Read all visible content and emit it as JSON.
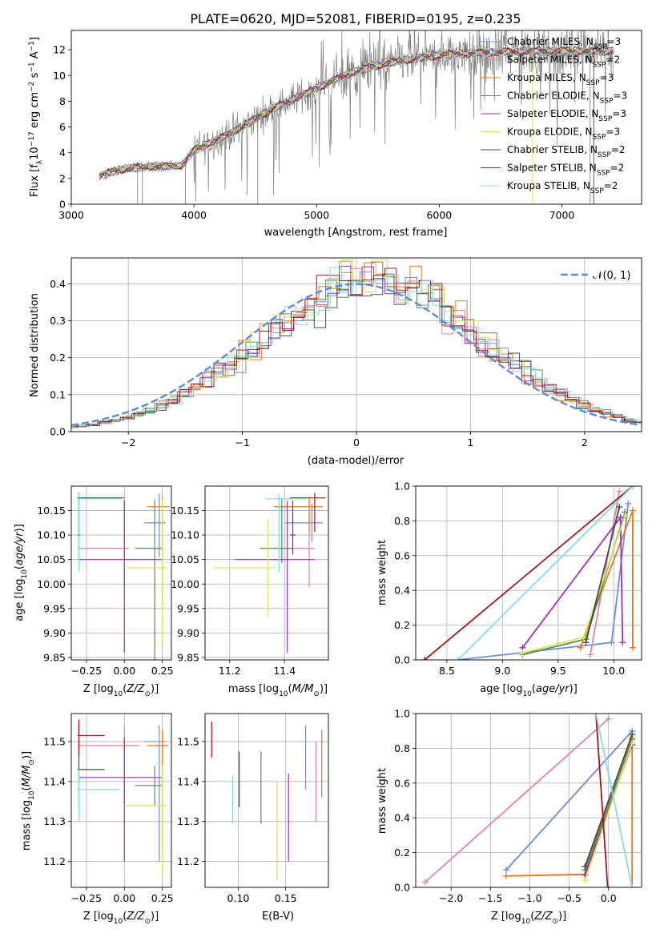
{
  "figure_title": "PLATE=0620, MJD=52081, FIBERID=0195, z=0.235",
  "colors": {
    "Chabrier MILES": "#6a8fd8",
    "Salpeter MILES": "#e67fb0",
    "Kroupa MILES": "#e8781a",
    "Chabrier ELODIE": "#5f8a50",
    "Salpeter ELODIE": "#9932b4",
    "Kroupa ELODIE": "#cfe85a",
    "Chabrier STELIB": "#4a4a4a",
    "Salpeter STELIB": "#a01818",
    "Kroupa STELIB": "#80dde2",
    "data_spectrum": "#808080",
    "gaussian": "#5b8ad6"
  },
  "chart_data": [
    {
      "id": "spectrum",
      "type": "line",
      "title": "PLATE=0620, MJD=52081, FIBERID=0195, z=0.235",
      "xlabel": "wavelength [Angstrom, rest frame]",
      "ylabel": "Flux [f$_\\lambda$10$^{-17}$ erg cm$^{-2}$ s$^{-1}$ A$^{-1}$]",
      "ylabel_parts": [
        "Flux [f",
        "λ",
        "10",
        "−17",
        " erg cm",
        "−2",
        " s",
        "−1",
        " A",
        "−1",
        "]"
      ],
      "xlim": [
        3000,
        7650
      ],
      "ylim": [
        0,
        13.5
      ],
      "xticks": [
        3000,
        4000,
        5000,
        6000,
        7000
      ],
      "yticks": [
        0,
        2,
        4,
        6,
        8,
        10,
        12
      ],
      "legend_position": "top-right",
      "series": [
        {
          "name": "Chabrier MILES",
          "n": "3"
        },
        {
          "name": "Salpeter MILES",
          "n": "2"
        },
        {
          "name": "Kroupa MILES",
          "n": "3"
        },
        {
          "name": "Chabrier ELODIE",
          "n": "3"
        },
        {
          "name": "Salpeter ELODIE",
          "n": "3"
        },
        {
          "name": "Kroupa ELODIE",
          "n": "3"
        },
        {
          "name": "Chabrier STELIB",
          "n": "2"
        },
        {
          "name": "Salpeter STELIB",
          "n": "2"
        },
        {
          "name": "Kroupa STELIB",
          "n": "2"
        }
      ],
      "n_prefix": "N",
      "n_sub": "SSP",
      "continuum": [
        [
          3230,
          2.2
        ],
        [
          3400,
          2.7
        ],
        [
          3600,
          2.9
        ],
        [
          3900,
          3.0
        ],
        [
          4000,
          4.2
        ],
        [
          4300,
          5.5
        ],
        [
          4600,
          7.2
        ],
        [
          5000,
          9.0
        ],
        [
          5300,
          10.3
        ],
        [
          5600,
          11.0
        ],
        [
          6000,
          11.6
        ],
        [
          6400,
          11.8
        ],
        [
          6800,
          11.9
        ],
        [
          7400,
          11.9
        ]
      ]
    },
    {
      "id": "residuals",
      "type": "bar",
      "xlabel": "(data-model)/error",
      "ylabel": "Normed distribution",
      "xlim": [
        -2.5,
        2.5
      ],
      "ylim": [
        0,
        0.47
      ],
      "xticks": [
        -2,
        -1,
        0,
        1,
        2
      ],
      "yticks": [
        0.0,
        0.1,
        0.2,
        0.3,
        0.4
      ],
      "legend_label": "𝒩(0, 1)",
      "legend_position": "top-right",
      "bin_width": 0.1,
      "gaussian": {
        "mean": 0,
        "sigma": 1
      }
    },
    {
      "id": "age-vs-Z",
      "type": "scatter",
      "xlabel": "Z [log$_{10}$(Z/Z$_\\odot$)]",
      "ylabel": "age  [log$_{10}$(age/yr)]",
      "xlim": [
        -0.35,
        0.31
      ],
      "ylim": [
        9.845,
        10.2
      ],
      "xticks": [
        -0.25,
        0.0,
        0.25
      ],
      "yticks": [
        9.85,
        9.9,
        9.95,
        10.0,
        10.05,
        10.1,
        10.15
      ],
      "points": [
        {
          "series": "Chabrier MILES",
          "x": 0.23,
          "y": 10.125,
          "xerr": [
            0.1,
            0.04
          ],
          "yerr": [
            0.07,
            0.06
          ]
        },
        {
          "series": "Salpeter MILES",
          "x": 0.0,
          "y": 10.073,
          "xerr": [
            0.3,
            0.03
          ],
          "yerr": [
            0.08,
            0.1
          ]
        },
        {
          "series": "Kroupa MILES",
          "x": 0.25,
          "y": 10.158,
          "xerr": [
            0.1,
            0.05
          ],
          "yerr": [
            0.2,
            0.02
          ]
        },
        {
          "series": "Chabrier ELODIE",
          "x": 0.2,
          "y": 10.073,
          "xerr": [
            0.13,
            0.05
          ],
          "yerr": [
            0.25,
            0.1
          ]
        },
        {
          "series": "Salpeter ELODIE",
          "x": 0.0,
          "y": 10.05,
          "xerr": [
            0.3,
            0.25
          ],
          "yerr": [
            0.19,
            0.12
          ]
        },
        {
          "series": "Kroupa ELODIE",
          "x": 0.25,
          "y": 10.033,
          "xerr": [
            0.25,
            0.04
          ],
          "yerr": [
            0.16,
            0.14
          ]
        },
        {
          "series": "Chabrier STELIB",
          "x": -0.3,
          "y": 10.1,
          "xerr": [
            0.01,
            0.01
          ],
          "yerr": [
            0.05,
            0.07
          ]
        },
        {
          "series": "Salpeter STELIB",
          "x": -0.3,
          "y": 10.176,
          "xerr": [
            0.01,
            0.3
          ],
          "yerr": [
            0.07,
            0.01
          ]
        },
        {
          "series": "Kroupa STELIB",
          "x": -0.3,
          "y": 10.174,
          "xerr": [
            0.01,
            0.28
          ],
          "yerr": [
            0.15,
            0.01
          ]
        }
      ]
    },
    {
      "id": "age-vs-mass",
      "type": "scatter",
      "xlabel": "mass [log$_{10}$(M/M$_\\odot$)]",
      "ylabel": "",
      "xlim": [
        11.11,
        11.56
      ],
      "ylim": [
        9.845,
        10.2
      ],
      "xticks": [
        11.2,
        11.4
      ],
      "yticks": [
        9.85,
        9.9,
        9.95,
        10.0,
        10.05,
        10.1,
        10.15
      ],
      "points": [
        {
          "series": "Chabrier MILES",
          "x": 11.5,
          "y": 10.125,
          "xerr": [
            0.1,
            0.04
          ],
          "yerr": [
            0.04,
            0.04
          ]
        },
        {
          "series": "Salpeter MILES",
          "x": 11.49,
          "y": 10.073,
          "xerr": [
            0.09,
            0.02
          ],
          "yerr": [
            0.08,
            0.1
          ]
        },
        {
          "series": "Kroupa MILES",
          "x": 11.49,
          "y": 10.158,
          "xerr": [
            0.13,
            0.05
          ],
          "yerr": [
            0.05,
            0.02
          ]
        },
        {
          "series": "Chabrier ELODIE",
          "x": 11.39,
          "y": 10.073,
          "xerr": [
            0.08,
            0.04
          ],
          "yerr": [
            0.03,
            0.1
          ]
        },
        {
          "series": "Salpeter ELODIE",
          "x": 11.41,
          "y": 10.05,
          "xerr": [
            0.19,
            0.1
          ],
          "yerr": [
            0.19,
            0.12
          ]
        },
        {
          "series": "Kroupa ELODIE",
          "x": 11.34,
          "y": 10.033,
          "xerr": [
            0.2,
            0.03
          ],
          "yerr": [
            0.1,
            0.1
          ]
        },
        {
          "series": "Chabrier STELIB",
          "x": 11.43,
          "y": 10.1,
          "xerr": [
            0.01,
            0.01
          ],
          "yerr": [
            0.04,
            0.07
          ]
        },
        {
          "series": "Salpeter STELIB",
          "x": 11.51,
          "y": 10.176,
          "xerr": [
            0.09,
            0.04
          ],
          "yerr": [
            0.07,
            0.01
          ]
        },
        {
          "series": "Kroupa STELIB",
          "x": 11.38,
          "y": 10.174,
          "xerr": [
            0.05,
            0.1
          ],
          "yerr": [
            0.15,
            0.01
          ]
        }
      ]
    },
    {
      "id": "weight-vs-age",
      "type": "line",
      "xlabel": "age  [log$_{10}$(age/yr)]",
      "ylabel": "mass weight",
      "xlim": [
        8.22,
        10.25
      ],
      "ylim": [
        0,
        1.0
      ],
      "xticks": [
        8.5,
        9.0,
        9.5,
        10.0
      ],
      "yticks": [
        0.0,
        0.2,
        0.4,
        0.6,
        0.8,
        1.0
      ],
      "series": [
        {
          "name": "Chabrier MILES",
          "x": [
            8.6,
            9.98,
            10.13
          ],
          "y": [
            0.0,
            0.1,
            0.9
          ]
        },
        {
          "name": "Salpeter MILES",
          "x": [
            9.79,
            10.05
          ],
          "y": [
            0.03,
            0.97
          ]
        },
        {
          "name": "Kroupa MILES",
          "x": [
            9.7,
            10.17,
            10.17
          ],
          "y": [
            0.07,
            0.86,
            0.07
          ]
        },
        {
          "name": "Chabrier ELODIE",
          "x": [
            9.18,
            9.75,
            10.1
          ],
          "y": [
            0.03,
            0.12,
            0.85
          ]
        },
        {
          "name": "Salpeter ELODIE",
          "x": [
            9.18,
            10.06,
            10.08
          ],
          "y": [
            0.07,
            0.82,
            0.1
          ]
        },
        {
          "name": "Kroupa ELODIE",
          "x": [
            9.18,
            9.73,
            10.1
          ],
          "y": [
            0.04,
            0.13,
            0.83
          ]
        },
        {
          "name": "Chabrier STELIB",
          "x": [
            9.75,
            10.05
          ],
          "y": [
            0.1,
            0.88
          ]
        },
        {
          "name": "Salpeter STELIB",
          "x": [
            8.3,
            10.17
          ],
          "y": [
            0.0,
            1.0
          ]
        },
        {
          "name": "Kroupa STELIB",
          "x": [
            8.6,
            10.17
          ],
          "y": [
            0.0,
            1.0
          ]
        }
      ]
    },
    {
      "id": "mass-vs-Z",
      "type": "scatter",
      "xlabel": "Z [log$_{10}$(Z/Z$_\\odot$)]",
      "ylabel": "mass [log$_{10}$(M/M$_\\odot$)]",
      "xlim": [
        -0.35,
        0.31
      ],
      "ylim": [
        11.135,
        11.57
      ],
      "xticks": [
        -0.25,
        0.0,
        0.25
      ],
      "yticks": [
        11.2,
        11.3,
        11.4,
        11.5
      ],
      "points": [
        {
          "series": "Chabrier MILES",
          "x": 0.23,
          "y": 11.5,
          "xerr": [
            0.1,
            0.04
          ],
          "yerr": [
            0.3,
            0.04
          ]
        },
        {
          "series": "Salpeter MILES",
          "x": 0.0,
          "y": 11.49,
          "xerr": [
            0.3,
            0.1
          ],
          "yerr": [
            0.15,
            0.05
          ]
        },
        {
          "series": "Kroupa MILES",
          "x": 0.25,
          "y": 11.49,
          "xerr": [
            0.1,
            0.04
          ],
          "yerr": [
            0.25,
            0.04
          ]
        },
        {
          "series": "Chabrier ELODIE",
          "x": 0.2,
          "y": 11.39,
          "xerr": [
            0.13,
            0.05
          ],
          "yerr": [
            0.05,
            0.05
          ]
        },
        {
          "series": "Salpeter ELODIE",
          "x": 0.0,
          "y": 11.41,
          "xerr": [
            0.3,
            0.25
          ],
          "yerr": [
            0.21,
            0.1
          ]
        },
        {
          "series": "Kroupa ELODIE",
          "x": 0.25,
          "y": 11.34,
          "xerr": [
            0.25,
            0.03
          ],
          "yerr": [
            0.18,
            0.1
          ]
        },
        {
          "series": "Chabrier STELIB",
          "x": -0.3,
          "y": 11.43,
          "xerr": [
            0.01,
            0.17
          ],
          "yerr": [
            0.09,
            0.12
          ]
        },
        {
          "series": "Salpeter STELIB",
          "x": -0.3,
          "y": 11.515,
          "xerr": [
            0.01,
            0.17
          ],
          "yerr": [
            0.05,
            0.04
          ]
        },
        {
          "series": "Kroupa STELIB",
          "x": -0.3,
          "y": 11.38,
          "xerr": [
            0.01,
            0.27
          ],
          "yerr": [
            0.08,
            0.05
          ]
        }
      ]
    },
    {
      "id": "mass-vs-EBV",
      "type": "scatter",
      "xlabel": "E(B-V)",
      "ylabel": "",
      "xlim": [
        0.065,
        0.195
      ],
      "ylim": [
        11.135,
        11.57
      ],
      "xticks": [
        0.1,
        0.15
      ],
      "yticks": [
        11.2,
        11.3,
        11.4,
        11.5
      ],
      "points": [
        {
          "series": "Chabrier MILES",
          "x": 0.171,
          "y": 11.46,
          "xerr": [
            0,
            0
          ],
          "yerr": [
            0.08,
            0.08
          ]
        },
        {
          "series": "Salpeter MILES",
          "x": 0.182,
          "y": 11.4,
          "xerr": [
            0,
            0
          ],
          "yerr": [
            0.1,
            0.1
          ]
        },
        {
          "series": "Kroupa MILES",
          "x": 0.188,
          "y": 11.445,
          "xerr": [
            0,
            0
          ],
          "yerr": [
            0.085,
            0.085
          ]
        },
        {
          "series": "Chabrier ELODIE",
          "x": 0.124,
          "y": 11.385,
          "xerr": [
            0,
            0
          ],
          "yerr": [
            0.09,
            0.09
          ]
        },
        {
          "series": "Salpeter ELODIE",
          "x": 0.153,
          "y": 11.31,
          "xerr": [
            0,
            0
          ],
          "yerr": [
            0.11,
            0.11
          ]
        },
        {
          "series": "Kroupa ELODIE",
          "x": 0.141,
          "y": 11.275,
          "xerr": [
            0,
            0
          ],
          "yerr": [
            0.125,
            0.125
          ]
        },
        {
          "series": "Chabrier STELIB",
          "x": 0.101,
          "y": 11.405,
          "xerr": [
            0,
            0
          ],
          "yerr": [
            0.07,
            0.07
          ]
        },
        {
          "series": "Salpeter STELIB",
          "x": 0.072,
          "y": 11.505,
          "xerr": [
            0,
            0
          ],
          "yerr": [
            0.045,
            0.045
          ]
        },
        {
          "series": "Kroupa STELIB",
          "x": 0.094,
          "y": 11.355,
          "xerr": [
            0,
            0
          ],
          "yerr": [
            0.06,
            0.06
          ]
        }
      ]
    },
    {
      "id": "weight-vs-Z",
      "type": "line",
      "xlabel": "Z [log$_{10}$(Z/Z$_\\odot$)]",
      "ylabel": "mass weight",
      "xlim": [
        -2.45,
        0.42
      ],
      "ylim": [
        0,
        1.0
      ],
      "xticks": [
        -2.0,
        -1.5,
        -1.0,
        -0.5,
        0.0
      ],
      "yticks": [
        0.0,
        0.2,
        0.4,
        0.6,
        0.8,
        1.0
      ],
      "series": [
        {
          "name": "Chabrier MILES",
          "x": [
            -1.3,
            0.3
          ],
          "y": [
            0.1,
            0.9
          ]
        },
        {
          "name": "Salpeter MILES",
          "x": [
            -2.33,
            0.0
          ],
          "y": [
            0.03,
            0.97
          ]
        },
        {
          "name": "Kroupa MILES",
          "x": [
            -1.3,
            -0.3,
            0.3,
            0.3
          ],
          "y": [
            0.065,
            0.075,
            0.86,
            0.0
          ]
        },
        {
          "name": "Chabrier ELODIE",
          "x": [
            -0.3,
            0.3
          ],
          "y": [
            0.1,
            0.85
          ]
        },
        {
          "name": "Salpeter ELODIE",
          "x": [
            -0.3,
            0.3
          ],
          "y": [
            0.07,
            0.82
          ]
        },
        {
          "name": "Kroupa ELODIE",
          "x": [
            -0.3,
            0.3
          ],
          "y": [
            0.04,
            0.83
          ]
        },
        {
          "name": "Chabrier STELIB",
          "x": [
            -0.3,
            0.3
          ],
          "y": [
            0.12,
            0.88
          ]
        },
        {
          "name": "Salpeter STELIB",
          "x": [
            -0.16,
            -0.01
          ],
          "y": [
            1.0,
            0.0
          ]
        },
        {
          "name": "Kroupa STELIB",
          "x": [
            -0.16,
            0.3
          ],
          "y": [
            1.0,
            0.0
          ]
        }
      ]
    }
  ]
}
